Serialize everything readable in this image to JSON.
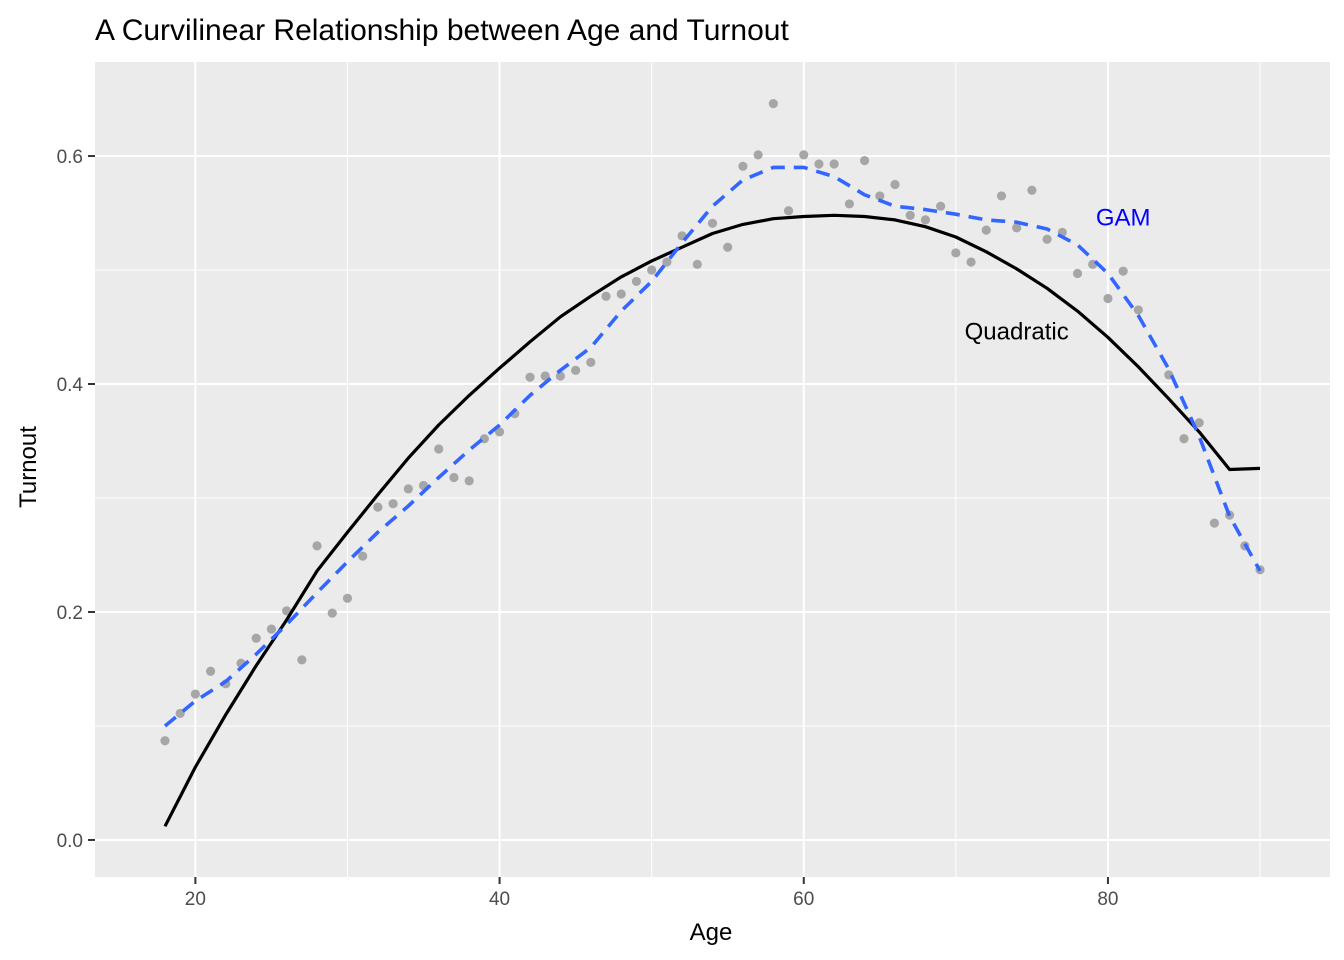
{
  "chart_data": {
    "type": "scatter",
    "title": "A Curvilinear Relationship between Age and Turnout",
    "xlabel": "Age",
    "ylabel": "Turnout",
    "xlim": [
      13.4,
      94.6
    ],
    "ylim": [
      -0.0325,
      0.6825
    ],
    "x_ticks": [
      20,
      40,
      60,
      80
    ],
    "y_ticks": [
      0.0,
      0.2,
      0.4,
      0.6
    ],
    "x_tick_labels": [
      "20",
      "40",
      "60",
      "80"
    ],
    "y_tick_labels": [
      "0.0",
      "0.2",
      "0.4",
      "0.6"
    ],
    "grid": true,
    "panel_background": "#ebebeb",
    "colors": {
      "points": "#a6a6a6",
      "quadratic": "#000000",
      "gam": "#3366ff",
      "gam_label": "#0000ff",
      "quadratic_label": "#000000"
    },
    "points": {
      "x": [
        18,
        19,
        20,
        21,
        22,
        23,
        24,
        25,
        26,
        27,
        28,
        29,
        30,
        31,
        32,
        33,
        34,
        35,
        36,
        37,
        38,
        39,
        40,
        41,
        42,
        43,
        44,
        45,
        46,
        47,
        48,
        49,
        50,
        51,
        52,
        53,
        54,
        55,
        56,
        57,
        58,
        59,
        60,
        61,
        62,
        63,
        64,
        65,
        66,
        67,
        68,
        69,
        70,
        71,
        72,
        73,
        74,
        75,
        76,
        77,
        78,
        79,
        80,
        81,
        82,
        84,
        85,
        86,
        87,
        88,
        89,
        90
      ],
      "y": [
        0.087,
        0.111,
        0.128,
        0.148,
        0.137,
        0.155,
        0.177,
        0.185,
        0.201,
        0.158,
        0.258,
        0.199,
        0.212,
        0.249,
        0.292,
        0.295,
        0.308,
        0.311,
        0.343,
        0.318,
        0.315,
        0.352,
        0.358,
        0.374,
        0.406,
        0.407,
        0.407,
        0.412,
        0.419,
        0.477,
        0.479,
        0.49,
        0.5,
        0.507,
        0.53,
        0.505,
        0.541,
        0.52,
        0.591,
        0.601,
        0.646,
        0.552,
        0.601,
        0.593,
        0.593,
        0.558,
        0.596,
        0.565,
        0.575,
        0.548,
        0.544,
        0.556,
        0.515,
        0.507,
        0.535,
        0.565,
        0.537,
        0.57,
        0.527,
        0.533,
        0.497,
        0.505,
        0.475,
        0.499,
        0.465,
        0.408,
        0.352,
        0.366,
        0.278,
        0.285,
        0.258,
        0.237
      ]
    },
    "series": [
      {
        "name": "Quadratic",
        "style": "solid",
        "x": [
          18,
          20,
          22,
          24,
          26,
          28,
          30,
          32,
          34,
          36,
          38,
          40,
          42,
          44,
          46,
          48,
          50,
          52,
          54,
          56,
          58,
          60,
          62,
          64,
          66,
          68,
          70,
          72,
          74,
          76,
          78,
          80,
          82,
          84,
          86,
          88,
          90
        ],
        "y": [
          0.012,
          0.064,
          0.11,
          0.153,
          0.193,
          0.236,
          0.27,
          0.303,
          0.335,
          0.364,
          0.39,
          0.414,
          0.437,
          0.459,
          0.477,
          0.494,
          0.508,
          0.52,
          0.532,
          0.54,
          0.545,
          0.547,
          0.548,
          0.547,
          0.544,
          0.538,
          0.529,
          0.516,
          0.501,
          0.484,
          0.464,
          0.441,
          0.415,
          0.387,
          0.358,
          0.325,
          0.326
        ]
      },
      {
        "name": "GAM",
        "style": "dashed",
        "x": [
          18,
          20,
          22,
          24,
          26,
          28,
          30,
          32,
          34,
          36,
          38,
          40,
          42,
          44,
          46,
          48,
          50,
          52,
          54,
          56,
          58,
          60,
          62,
          64,
          66,
          68,
          70,
          72,
          74,
          76,
          78,
          80,
          82,
          84,
          86,
          88,
          90
        ],
        "y": [
          0.1,
          0.122,
          0.139,
          0.163,
          0.189,
          0.217,
          0.244,
          0.27,
          0.293,
          0.318,
          0.342,
          0.364,
          0.39,
          0.412,
          0.432,
          0.464,
          0.49,
          0.524,
          0.556,
          0.579,
          0.59,
          0.59,
          0.582,
          0.566,
          0.556,
          0.553,
          0.549,
          0.544,
          0.542,
          0.536,
          0.522,
          0.497,
          0.46,
          0.413,
          0.354,
          0.284,
          0.236
        ]
      }
    ],
    "annotations": [
      {
        "text": "GAM",
        "x": 81,
        "y": 0.546,
        "color": "#0000ff"
      },
      {
        "text": "Quadratic",
        "x": 74,
        "y": 0.446,
        "color": "#000000"
      }
    ]
  }
}
